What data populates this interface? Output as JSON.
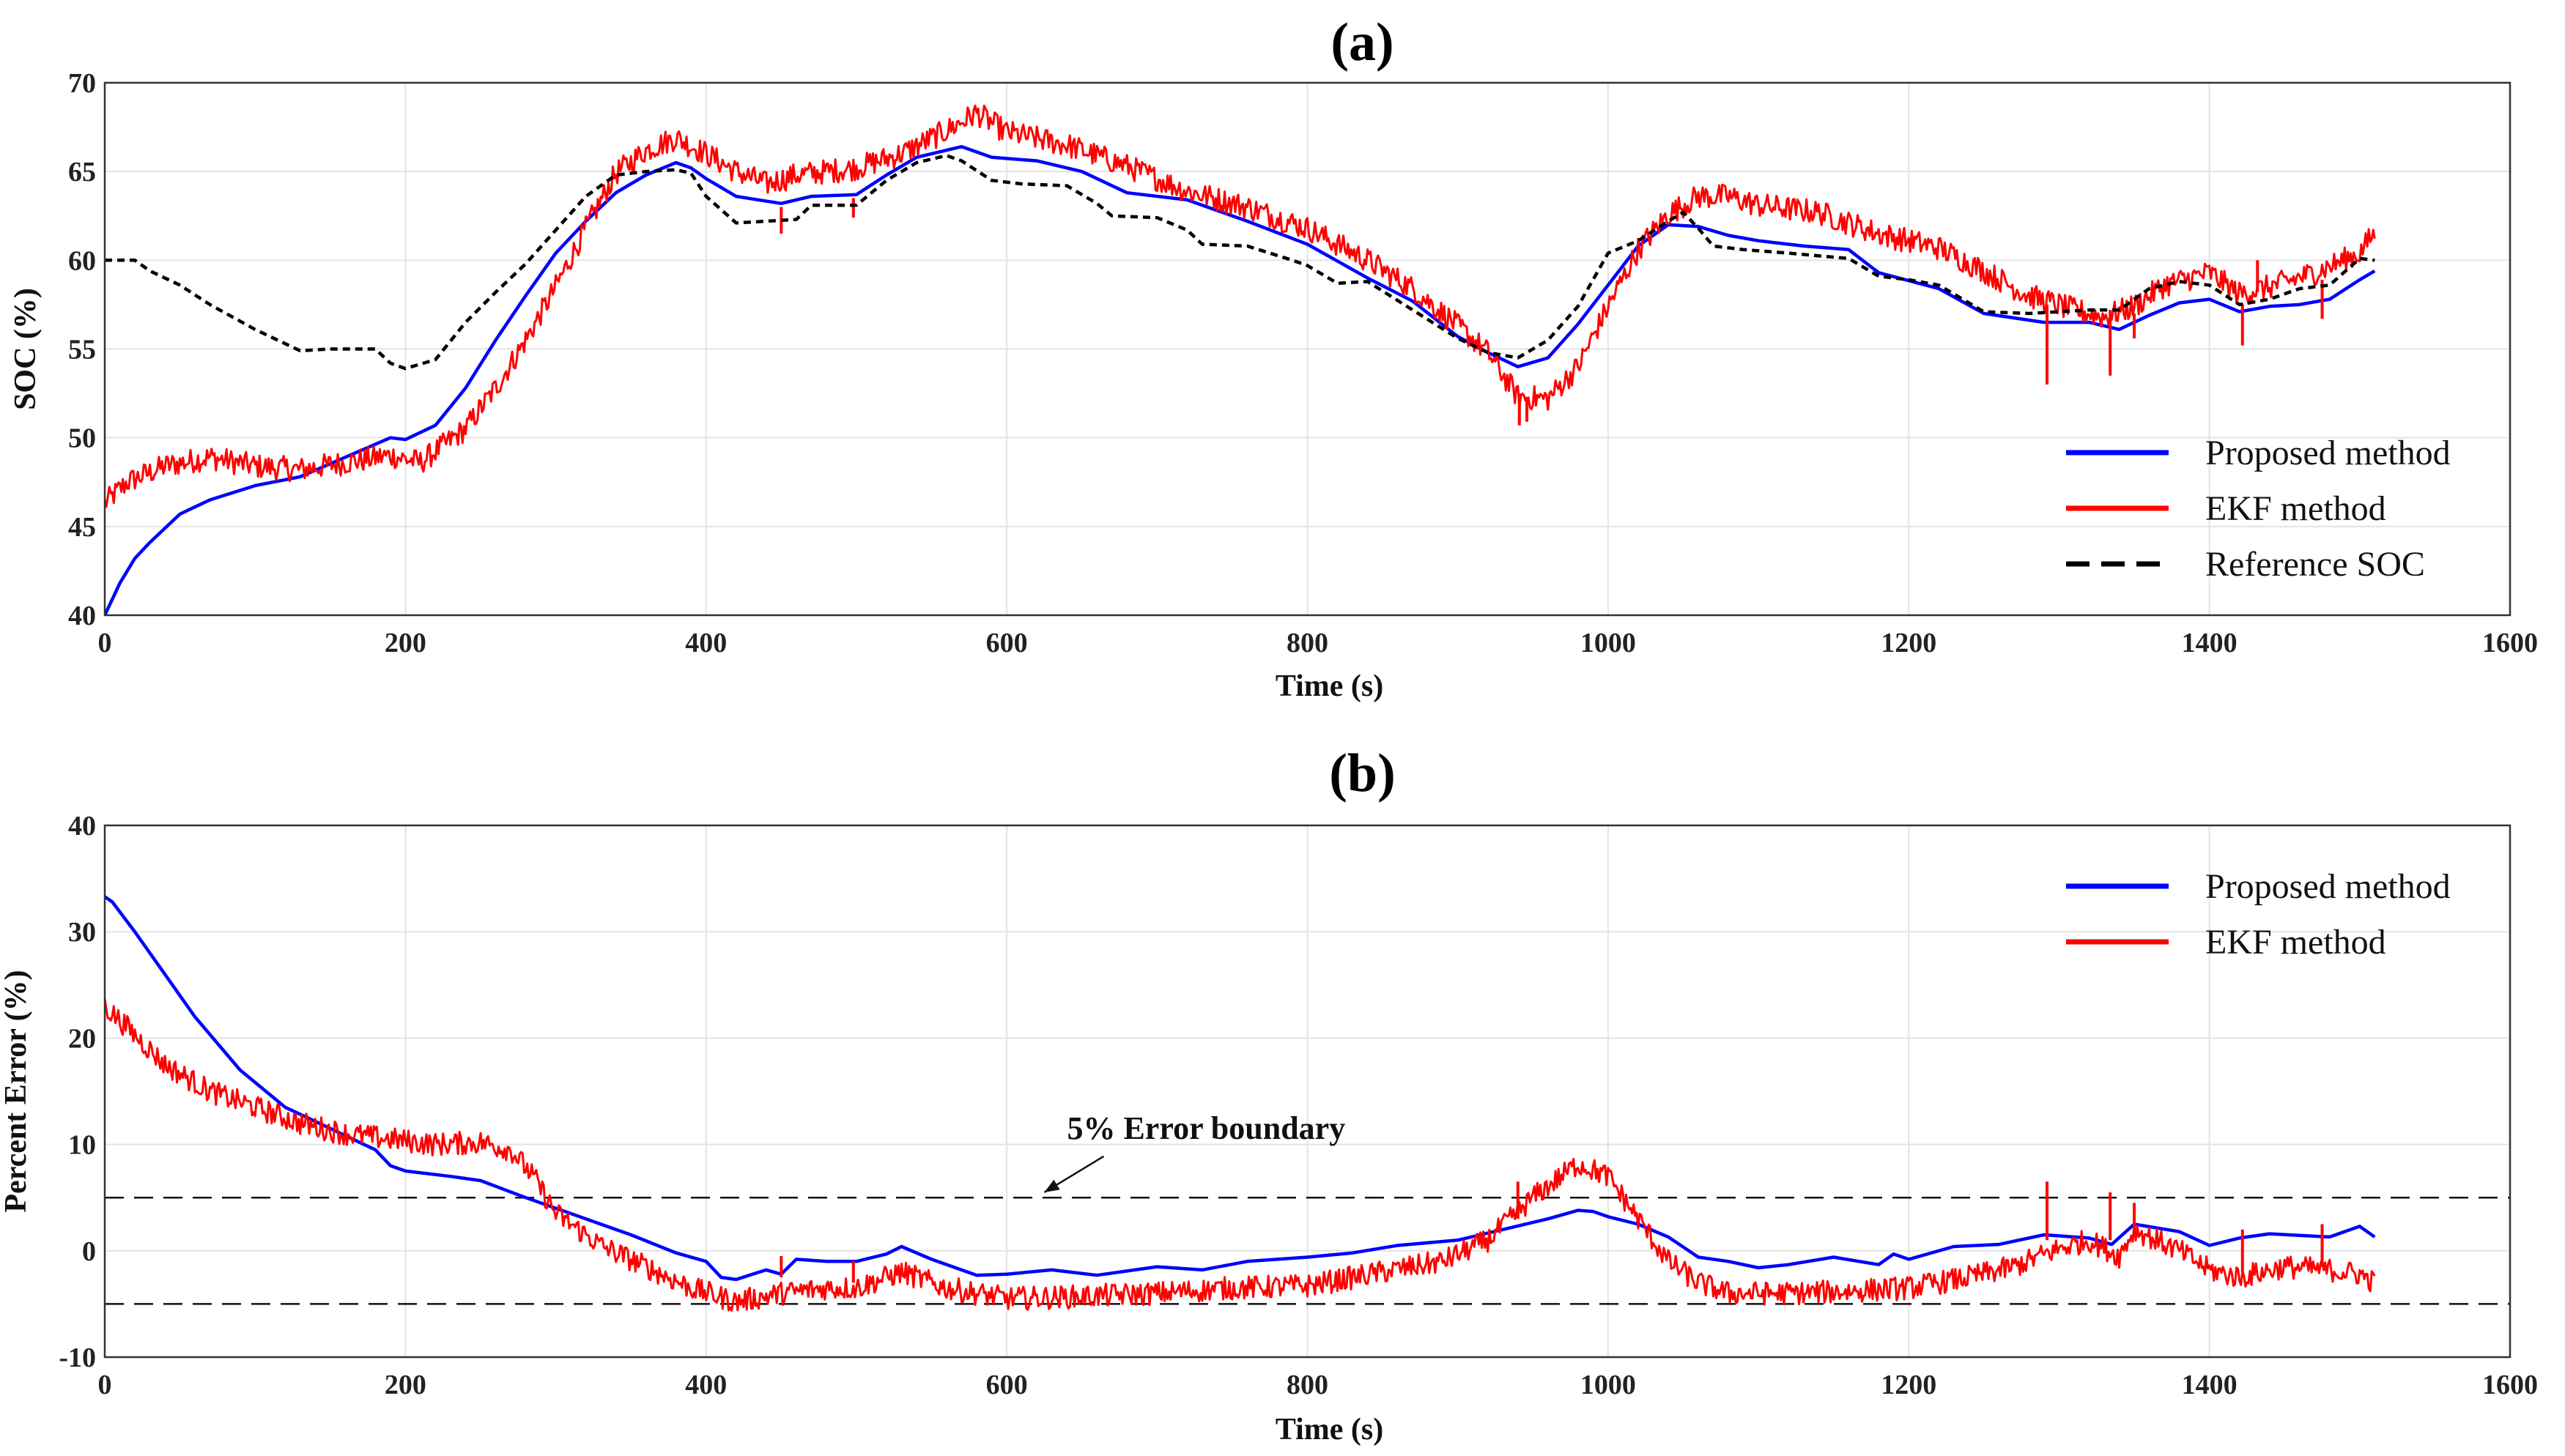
{
  "chart_data": [
    {
      "type": "line",
      "panel_label": "(a)",
      "xlabel": "Time (s)",
      "ylabel": "SOC (%)",
      "xlim": [
        0,
        1600
      ],
      "ylim": [
        40,
        70
      ],
      "xticks": [
        0,
        200,
        400,
        600,
        800,
        1000,
        1200,
        1400,
        1600
      ],
      "yticks": [
        40,
        45,
        50,
        55,
        60,
        65,
        70
      ],
      "grid": true,
      "legend_position": "bottom-right",
      "series": [
        {
          "name": "Proposed method",
          "color": "#0000ff",
          "style": "solid",
          "noise": 0,
          "x": [
            0,
            10,
            20,
            30,
            50,
            70,
            100,
            130,
            160,
            190,
            200,
            220,
            240,
            260,
            280,
            300,
            320,
            340,
            360,
            380,
            390,
            400,
            420,
            450,
            470,
            500,
            520,
            540,
            570,
            590,
            620,
            650,
            680,
            720,
            760,
            800,
            840,
            870,
            900,
            920,
            940,
            960,
            980,
            1000,
            1020,
            1040,
            1060,
            1080,
            1100,
            1130,
            1160,
            1180,
            1220,
            1250,
            1290,
            1320,
            1340,
            1360,
            1380,
            1400,
            1420,
            1440,
            1460,
            1480,
            1500,
            1510
          ],
          "y": [
            40,
            41.8,
            43.2,
            44.1,
            45.7,
            46.5,
            47.3,
            47.8,
            48.9,
            50.0,
            49.9,
            50.7,
            52.8,
            55.5,
            58.0,
            60.4,
            62.2,
            63.8,
            64.8,
            65.5,
            65.2,
            64.6,
            63.6,
            63.2,
            63.6,
            63.7,
            64.8,
            65.8,
            66.4,
            65.8,
            65.6,
            65.0,
            63.8,
            63.4,
            62.2,
            60.9,
            59.0,
            57.7,
            55.7,
            54.8,
            54.0,
            54.5,
            56.4,
            58.6,
            60.8,
            62.0,
            61.9,
            61.4,
            61.1,
            60.8,
            60.6,
            59.3,
            58.4,
            57.0,
            56.5,
            56.5,
            56.1,
            56.9,
            57.6,
            57.8,
            57.1,
            57.4,
            57.5,
            57.8,
            58.9,
            59.4
          ]
        },
        {
          "name": "EKF method",
          "color": "#ff0000",
          "style": "solid",
          "noise": 0.7,
          "x": [
            0,
            15,
            40,
            70,
            100,
            130,
            160,
            190,
            210,
            240,
            260,
            280,
            300,
            320,
            340,
            360,
            380,
            400,
            420,
            440,
            460,
            500,
            530,
            560,
            580,
            600,
            640,
            680,
            720,
            760,
            800,
            840,
            870,
            900,
            920,
            940,
            960,
            980,
            1000,
            1020,
            1040,
            1060,
            1080,
            1100,
            1140,
            1180,
            1220,
            1250,
            1280,
            1310,
            1330,
            1350,
            1370,
            1400,
            1420,
            1440,
            1470,
            1500,
            1510
          ],
          "y": [
            46.3,
            47.5,
            48.4,
            48.9,
            48.4,
            48.2,
            48.6,
            49.0,
            48.6,
            50.5,
            52.8,
            55.5,
            58.5,
            61.8,
            64.9,
            66.2,
            66.9,
            66.0,
            65.0,
            64.3,
            64.8,
            65.2,
            66.0,
            67.3,
            68.3,
            67.2,
            66.5,
            65.3,
            63.9,
            63.0,
            61.8,
            60.0,
            58.4,
            56.3,
            54.8,
            52.3,
            52.2,
            54.0,
            57.4,
            60.6,
            62.6,
            63.6,
            63.6,
            63.1,
            62.7,
            61.5,
            60.7,
            59.4,
            58.0,
            57.2,
            56.8,
            57.4,
            58.6,
            59.3,
            58.1,
            58.5,
            59.3,
            60.4,
            61.6
          ]
        },
        {
          "name": "Reference SOC",
          "color": "#000000",
          "style": "dashed",
          "noise": 0,
          "x": [
            0,
            20,
            30,
            50,
            70,
            100,
            120,
            130,
            150,
            180,
            190,
            200,
            220,
            240,
            260,
            280,
            300,
            320,
            340,
            360,
            380,
            390,
            400,
            420,
            440,
            460,
            470,
            500,
            520,
            540,
            560,
            570,
            590,
            610,
            640,
            660,
            670,
            700,
            720,
            730,
            760,
            790,
            800,
            820,
            840,
            870,
            900,
            920,
            940,
            960,
            980,
            1000,
            1020,
            1040,
            1050,
            1060,
            1070,
            1090,
            1120,
            1160,
            1180,
            1200,
            1220,
            1250,
            1280,
            1300,
            1320,
            1340,
            1360,
            1380,
            1400,
            1420,
            1440,
            1460,
            1480,
            1500,
            1510
          ],
          "y": [
            60.0,
            60.0,
            59.4,
            58.6,
            57.5,
            56.1,
            55.3,
            54.9,
            55.0,
            55.0,
            54.2,
            53.9,
            54.4,
            56.5,
            58.2,
            59.8,
            61.7,
            63.6,
            64.8,
            65.0,
            65.1,
            64.9,
            63.6,
            62.1,
            62.2,
            62.3,
            63.1,
            63.1,
            64.5,
            65.5,
            65.9,
            65.6,
            64.5,
            64.3,
            64.2,
            63.2,
            62.5,
            62.4,
            61.7,
            60.9,
            60.8,
            60.0,
            59.7,
            58.7,
            58.8,
            57.2,
            55.6,
            54.8,
            54.5,
            55.5,
            57.4,
            60.4,
            61.1,
            62.2,
            62.7,
            61.8,
            60.8,
            60.6,
            60.4,
            60.1,
            59.1,
            58.9,
            58.6,
            57.1,
            57.0,
            57.1,
            57.2,
            57.2,
            58.4,
            58.8,
            58.6,
            57.5,
            57.8,
            58.4,
            58.6,
            60.1,
            60.0
          ]
        }
      ],
      "spikes": [
        {
          "x": 1292,
          "y1": 57.5,
          "y2": 53.0
        },
        {
          "x": 1334,
          "y1": 57.2,
          "y2": 53.5
        },
        {
          "x": 1350,
          "y1": 57.0,
          "y2": 55.6
        },
        {
          "x": 1422,
          "y1": 57.5,
          "y2": 55.2
        },
        {
          "x": 1432,
          "y1": 58.2,
          "y2": 60.0
        },
        {
          "x": 1475,
          "y1": 58.9,
          "y2": 56.7
        },
        {
          "x": 941,
          "y1": 52.5,
          "y2": 50.7
        },
        {
          "x": 946,
          "y1": 52.3,
          "y2": 50.9
        },
        {
          "x": 450,
          "y1": 63.0,
          "y2": 61.5
        },
        {
          "x": 498,
          "y1": 63.5,
          "y2": 62.4
        }
      ]
    },
    {
      "type": "line",
      "panel_label": "(b)",
      "xlabel": "Time (s)",
      "ylabel": "Percent Error (%)",
      "xlim": [
        0,
        1600
      ],
      "ylim": [
        -10,
        40
      ],
      "xticks": [
        0,
        200,
        400,
        600,
        800,
        1000,
        1200,
        1400,
        1600
      ],
      "yticks": [
        -10,
        0,
        10,
        20,
        30,
        40
      ],
      "grid": true,
      "legend_position": "top-right",
      "series": [
        {
          "name": "Proposed method",
          "color": "#0000ff",
          "style": "solid",
          "noise": 0,
          "x": [
            0,
            5,
            20,
            40,
            60,
            90,
            120,
            150,
            180,
            190,
            200,
            230,
            250,
            280,
            300,
            330,
            350,
            380,
            400,
            410,
            420,
            440,
            450,
            460,
            480,
            500,
            520,
            530,
            550,
            580,
            600,
            630,
            660,
            700,
            730,
            760,
            800,
            830,
            860,
            900,
            930,
            960,
            980,
            990,
            1000,
            1020,
            1040,
            1060,
            1080,
            1100,
            1120,
            1150,
            1180,
            1190,
            1200,
            1230,
            1260,
            1290,
            1320,
            1335,
            1350,
            1380,
            1400,
            1420,
            1440,
            1480,
            1500,
            1510
          ],
          "y": [
            33.3,
            32.8,
            30.0,
            26.0,
            22.0,
            17.0,
            13.5,
            11.5,
            9.5,
            8.0,
            7.5,
            7.0,
            6.6,
            5.0,
            4.0,
            2.5,
            1.5,
            -0.2,
            -1.0,
            -2.5,
            -2.7,
            -1.8,
            -2.2,
            -0.8,
            -1.0,
            -1.0,
            -0.3,
            0.4,
            -0.8,
            -2.3,
            -2.2,
            -1.8,
            -2.3,
            -1.5,
            -1.8,
            -1.0,
            -0.6,
            -0.2,
            0.5,
            1.0,
            2.0,
            3.0,
            3.8,
            3.7,
            3.2,
            2.5,
            1.3,
            -0.6,
            -1.0,
            -1.6,
            -1.3,
            -0.6,
            -1.3,
            -0.3,
            -0.8,
            0.4,
            0.6,
            1.5,
            1.2,
            0.6,
            2.5,
            1.8,
            0.5,
            1.2,
            1.6,
            1.3,
            2.3,
            1.3
          ]
        },
        {
          "name": "EKF method",
          "color": "#ff0000",
          "style": "solid",
          "noise": 1.1,
          "x": [
            0,
            15,
            40,
            70,
            100,
            130,
            160,
            190,
            220,
            250,
            270,
            285,
            300,
            330,
            360,
            390,
            420,
            450,
            480,
            500,
            530,
            560,
            600,
            650,
            700,
            750,
            800,
            850,
            890,
            920,
            950,
            980,
            1000,
            1020,
            1040,
            1060,
            1080,
            1120,
            1160,
            1200,
            1240,
            1270,
            1300,
            1320,
            1340,
            1350,
            1380,
            1400,
            1420,
            1450,
            1480,
            1500,
            1510
          ],
          "y": [
            23.0,
            21.0,
            17.5,
            15.0,
            13.5,
            12.0,
            11.0,
            10.5,
            10.0,
            10.2,
            9.5,
            7.0,
            3.5,
            0.5,
            -1.5,
            -3.5,
            -4.8,
            -4.0,
            -3.5,
            -3.5,
            -2.0,
            -3.5,
            -4.5,
            -4.3,
            -4.0,
            -3.5,
            -3.3,
            -2.0,
            -1.0,
            1.0,
            5.0,
            8.2,
            7.0,
            3.0,
            -1.0,
            -3.0,
            -4.0,
            -4.0,
            -3.8,
            -3.5,
            -2.5,
            -1.5,
            0.2,
            1.0,
            -0.5,
            2.0,
            0.0,
            -1.8,
            -2.5,
            -1.5,
            -1.8,
            -2.2,
            -3.0
          ]
        }
      ],
      "spikes": [
        {
          "x": 1292,
          "y1": 1.0,
          "y2": 6.5
        },
        {
          "x": 1334,
          "y1": 1.0,
          "y2": 5.5
        },
        {
          "x": 1350,
          "y1": 1.8,
          "y2": 4.5
        },
        {
          "x": 940,
          "y1": 3.0,
          "y2": 6.5
        },
        {
          "x": 450,
          "y1": -2.5,
          "y2": -0.5
        },
        {
          "x": 498,
          "y1": -3.0,
          "y2": -1.0
        },
        {
          "x": 1422,
          "y1": -2.0,
          "y2": 2.0
        },
        {
          "x": 1475,
          "y1": -1.5,
          "y2": 2.5
        }
      ],
      "reference_lines": [
        {
          "y": 5,
          "style": "dashed"
        },
        {
          "y": -5,
          "style": "dashed"
        }
      ],
      "annotation": {
        "text": "5% Error boundary",
        "arrow_to": {
          "x": 625,
          "y": 5.5
        },
        "anchor": {
          "x": 645,
          "y": 11.5
        }
      }
    }
  ]
}
